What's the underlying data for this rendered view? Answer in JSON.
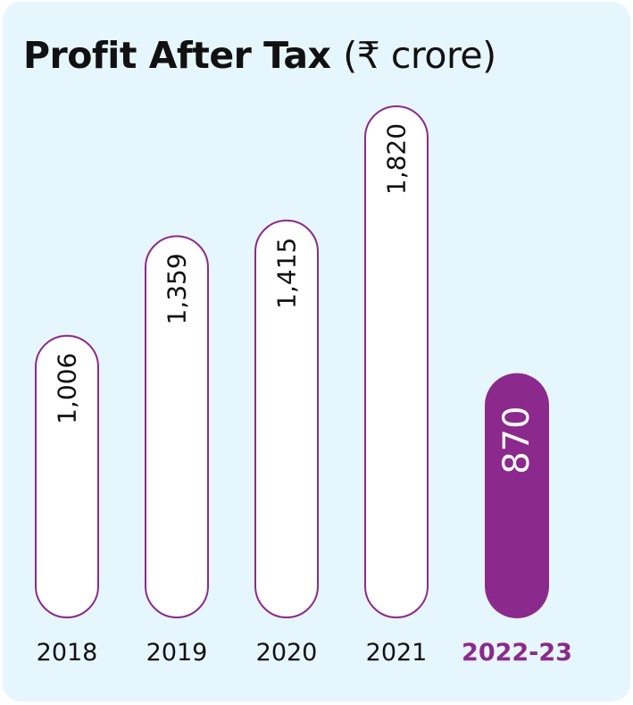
{
  "chart_data": {
    "type": "bar",
    "title": "Profit After Tax",
    "unit": "(₹ crore)",
    "categories": [
      "2018",
      "2019",
      "2020",
      "2021",
      "2022-23"
    ],
    "value_labels": [
      "1,006",
      "1,359",
      "1,415",
      "1,820",
      "870"
    ],
    "values": [
      1006,
      1359,
      1415,
      1820,
      870
    ],
    "highlight_index": 4,
    "xlabel": "",
    "ylabel": "",
    "colors": {
      "background": "#e6f6fd",
      "bar_fill": "#ffffff",
      "bar_outline": "#8b2a8c",
      "highlight_fill": "#8b2a8c",
      "highlight_text": "#ffffff",
      "text": "#111111"
    }
  }
}
